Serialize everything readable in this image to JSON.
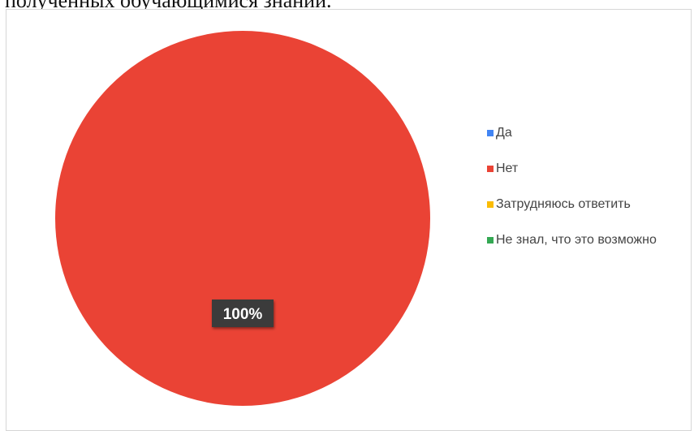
{
  "document": {
    "cut_off_text": "полученных обучающимися знаний."
  },
  "chart_data": {
    "type": "pie",
    "title": "",
    "categories": [
      "Да",
      "Нет",
      "Затрудняюсь ответить",
      "Не знал, что это возможно"
    ],
    "values": [
      0,
      100,
      0,
      0
    ],
    "unit": "%",
    "colors": [
      "#4285f4",
      "#ea4335",
      "#fbbc04",
      "#34a853"
    ],
    "data_labels": [
      {
        "category": "Нет",
        "text": "100%"
      }
    ],
    "legend": {
      "placement": "right",
      "items": [
        {
          "label": "Да",
          "color": "#4285f4"
        },
        {
          "label": "Нет",
          "color": "#ea4335"
        },
        {
          "label": "Затрудняюсь ответить",
          "color": "#fbbc04"
        },
        {
          "label": "Не знал, что это возможно",
          "color": "#34a853"
        }
      ]
    }
  }
}
